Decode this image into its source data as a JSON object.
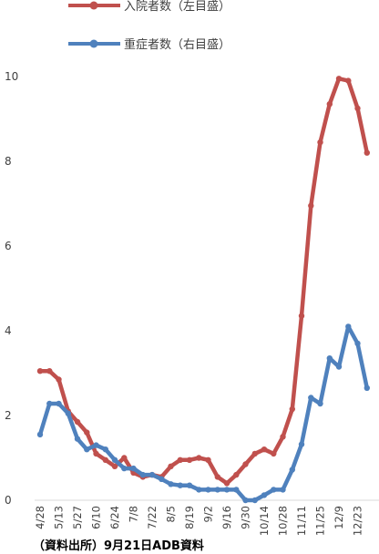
{
  "chart_data": {
    "type": "line",
    "title": "",
    "x": [
      "4/28",
      "5/6",
      "5/13",
      "5/20",
      "5/27",
      "6/3",
      "6/10",
      "6/17",
      "6/24",
      "7/1",
      "7/8",
      "7/15",
      "7/22",
      "7/29",
      "8/5",
      "8/12",
      "8/19",
      "8/26",
      "9/2",
      "9/9",
      "9/16",
      "9/23",
      "9/30",
      "10/7",
      "10/14",
      "10/21",
      "10/28",
      "11/4",
      "11/11",
      "11/18",
      "11/25",
      "12/2",
      "12/9",
      "12/16",
      "12/23",
      "12/30"
    ],
    "x_tick_labels": [
      "4/28",
      "5/13",
      "5/27",
      "6/10",
      "6/24",
      "7/8",
      "7/22",
      "8/5",
      "8/19",
      "9/2",
      "9/16",
      "9/30",
      "10/14",
      "10/28",
      "11/11",
      "11/25",
      "12/9",
      "12/23"
    ],
    "ylim": [
      0,
      10
    ],
    "y_ticks": [
      "0",
      "2",
      "4",
      "6",
      "8",
      "10"
    ],
    "legend_position": "top",
    "series": [
      {
        "name": "入院者数（左目盛）",
        "color": "#c0504d",
        "values": [
          3.05,
          3.05,
          2.85,
          2.1,
          1.85,
          1.6,
          1.1,
          0.95,
          0.8,
          1.0,
          0.65,
          0.55,
          0.6,
          0.55,
          0.8,
          0.95,
          0.95,
          1.0,
          0.95,
          0.55,
          0.4,
          0.6,
          0.85,
          1.1,
          1.2,
          1.1,
          1.5,
          2.15,
          4.35,
          6.95,
          8.45,
          9.35,
          9.95,
          9.9,
          9.25,
          8.2
        ]
      },
      {
        "name": "重症者数（右目盛）",
        "color": "#4f81bd",
        "values": [
          1.55,
          2.28,
          2.28,
          2.05,
          1.45,
          1.2,
          1.3,
          1.2,
          0.95,
          0.75,
          0.75,
          0.6,
          0.6,
          0.5,
          0.38,
          0.35,
          0.35,
          0.25,
          0.25,
          0.25,
          0.25,
          0.25,
          0.0,
          0.0,
          0.12,
          0.25,
          0.25,
          0.72,
          1.32,
          2.42,
          2.28,
          3.35,
          3.15,
          4.1,
          3.7,
          2.65
        ]
      }
    ]
  },
  "source_note": "（資料出所）9月21日ADB資料"
}
